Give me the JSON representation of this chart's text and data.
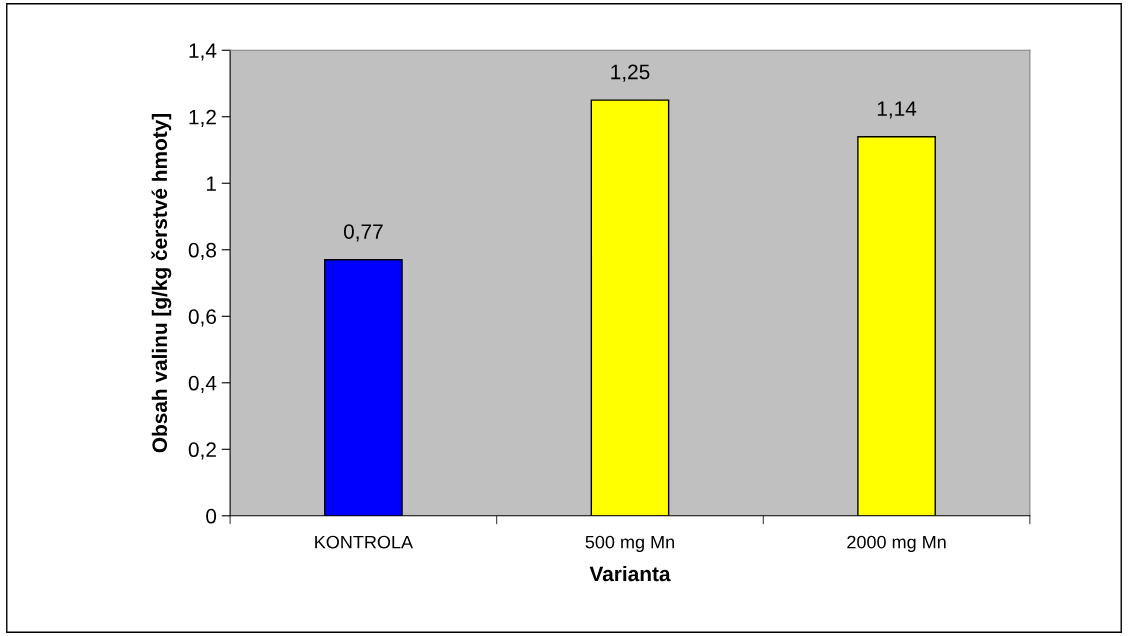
{
  "chart_data": {
    "type": "bar",
    "xlabel": "Varianta",
    "ylabel": "Obsah valinu [g/kg čerstvé hmoty]",
    "categories": [
      "KONTROLA",
      "500 mg Mn",
      "2000 mg Mn"
    ],
    "values": [
      0.77,
      1.25,
      1.14
    ],
    "colors": [
      "#0000ff",
      "#ffff00",
      "#ffff00"
    ],
    "value_labels": [
      "0,77",
      "1,25",
      "1,14"
    ],
    "ylim": [
      0,
      1.4
    ],
    "yticks": [
      0,
      {
        "value": 0.2,
        "label": "0,2"
      },
      {
        "value": 0.4,
        "label": "0,4"
      },
      {
        "value": 0.6,
        "label": "0,6"
      },
      {
        "value": 0.8,
        "label": "0,8"
      },
      1,
      {
        "value": 1.2,
        "label": "1,2"
      },
      {
        "value": 1.4,
        "label": "1,4"
      }
    ],
    "grid": false,
    "legend": false
  }
}
